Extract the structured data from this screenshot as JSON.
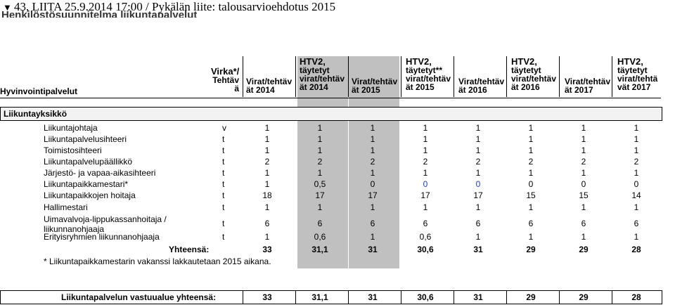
{
  "bookmark": {
    "number": "43,",
    "title": "LIITA 25.9.2014 17:00 / Pykälän liite: talousarvioehdotus 2015"
  },
  "subtitle": "Henkilöstösuunnitelma liikuntapalvelut",
  "header": {
    "first": "Hyvinvointipalvelut",
    "cols": [
      [
        "Virka*/",
        "Tehtäv",
        "ä"
      ],
      [
        "Virat/tehtäv",
        "ät 2014"
      ],
      [
        "HTV2,",
        "täytetyt",
        "virat/tehtäv",
        "ät 2014"
      ],
      [
        "Virat/tehtäv",
        "ät 2015"
      ],
      [
        "HTV2,",
        "täytetyt**",
        "virat/tehtäv",
        "ät 2015"
      ],
      [
        "Virat/tehtäv",
        "ät 2016"
      ],
      [
        "HTV2,",
        "täytetyt",
        "virat/tehtäv",
        "ät 2016"
      ],
      [
        "Virat/tehtäv",
        "ät 2017"
      ],
      [
        "HTV2,",
        "täytetyt",
        "virat/tehtä",
        "vät 2017"
      ]
    ]
  },
  "section": "Liikuntayksikkö",
  "rows": [
    {
      "name": "Liikuntajohtaja",
      "type": "v",
      "values": [
        "1",
        "1",
        "1",
        "1",
        "1",
        "1",
        "1",
        "1"
      ]
    },
    {
      "name": "Liikuntapalvelusihteeri",
      "type": "t",
      "values": [
        "1",
        "1",
        "1",
        "1",
        "1",
        "1",
        "1",
        "1"
      ]
    },
    {
      "name": "Toimistosihteeri",
      "type": "t",
      "values": [
        "1",
        "1",
        "1",
        "1",
        "1",
        "1",
        "1",
        "1"
      ]
    },
    {
      "name": "Liikuntapalvelupäällikkö",
      "type": "t",
      "values": [
        "2",
        "2",
        "2",
        "2",
        "2",
        "2",
        "2",
        "2"
      ]
    },
    {
      "name": "Järjestö- ja vapaa-aikasihteeri",
      "type": "t",
      "values": [
        "1",
        "1",
        "1",
        "1",
        "1",
        "1",
        "1",
        "1"
      ]
    },
    {
      "name": "Liikuntapaikkamestari*",
      "type": "t",
      "values": [
        "1",
        "0,5",
        "0",
        "0",
        "0",
        "0",
        "0",
        "0"
      ]
    },
    {
      "name": "Liikuntapaikkojen hoitaja",
      "type": "t",
      "values": [
        "18",
        "17",
        "17",
        "17",
        "17",
        "15",
        "15",
        "14"
      ]
    },
    {
      "name": "Hallimestari",
      "type": "t",
      "values": [
        "1",
        "1",
        "1",
        "1",
        "1",
        "1",
        "1",
        "1"
      ]
    },
    {
      "name": "Uimavalvoja-lippukassanhoitaja / liikunnanohjaaja",
      "type": "t",
      "values": [
        "6",
        "6",
        "6",
        "6",
        "6",
        "6",
        "6",
        "6"
      ]
    },
    {
      "name": "Erityisryhmien liikunnanohjaaja",
      "type": "t",
      "values": [
        "1",
        "0,6",
        "1",
        "0,6",
        "1",
        "1",
        "1",
        "1"
      ]
    }
  ],
  "total": {
    "label": "Yhteensä:",
    "values": [
      "33",
      "31,1",
      "31",
      "30,6",
      "31",
      "29",
      "29",
      "28"
    ]
  },
  "footnote": "* Liikuntapaikkamestarin vakanssi lakkautetaan 2015 aikana.",
  "grand_total": {
    "label": "Liikuntapalvelun vastuualue yhteensä:",
    "values": [
      "33",
      "31,1",
      "31",
      "30,6",
      "31",
      "29",
      "29",
      "28"
    ]
  },
  "colors": {
    "shade": "#c0c0c0",
    "blue_values": "#1e3dbf"
  }
}
